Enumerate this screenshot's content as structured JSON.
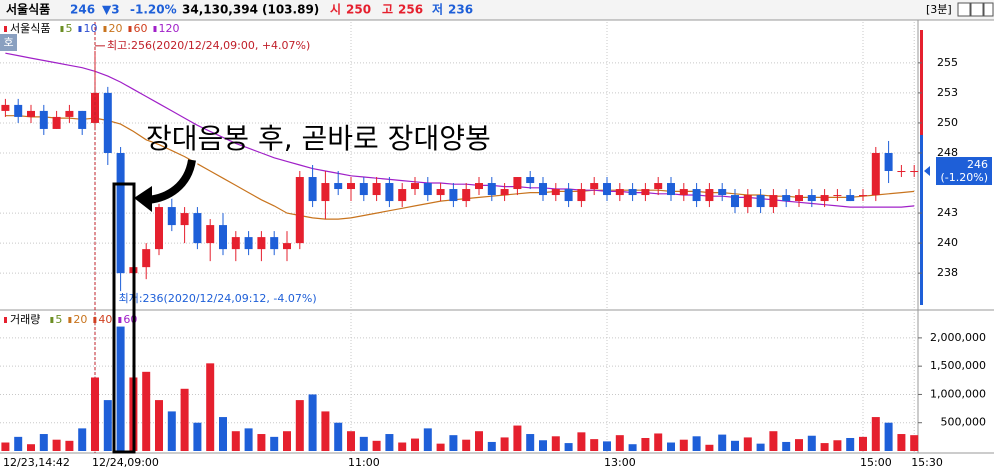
{
  "header": {
    "name": "서울식품",
    "price": "246",
    "change": "▼3",
    "change_pct": "-1.20%",
    "volume": "34,130,394",
    "volume_ratio": "(103.89)",
    "open_label": "시",
    "open": "250",
    "high_label": "고",
    "high": "256",
    "low_label": "저",
    "low": "236",
    "interval": "[3분]"
  },
  "chart_data": [
    {
      "type": "candlestick",
      "title": "서울식품",
      "badge": "호",
      "categories": [
        "12/23,14:42",
        null,
        null,
        null,
        null,
        null,
        null,
        "12/24,09:00",
        null,
        null,
        null,
        null,
        null,
        null,
        null,
        null,
        null,
        null,
        null,
        null,
        null,
        null,
        null,
        null,
        null,
        null,
        null,
        "11:00",
        null,
        null,
        null,
        null,
        null,
        null,
        null,
        null,
        null,
        null,
        null,
        null,
        null,
        null,
        null,
        null,
        null,
        null,
        null,
        "13:00",
        null,
        null,
        null,
        null,
        null,
        null,
        null,
        null,
        null,
        null,
        null,
        null,
        null,
        null,
        null,
        null,
        null,
        null,
        null,
        "15:00",
        null,
        null,
        null,
        "15:30"
      ],
      "open": [
        251,
        251.5,
        250.5,
        251,
        249.5,
        250.5,
        251,
        250,
        252.5,
        247.5,
        237.5,
        238,
        239.5,
        243,
        241.5,
        242.5,
        240,
        241.5,
        239.5,
        240.5,
        239.5,
        240.5,
        239.5,
        240,
        245.5,
        243.5,
        245,
        244.5,
        245,
        244,
        245,
        243.5,
        244.5,
        245,
        244,
        244.5,
        243.5,
        244.5,
        245,
        244,
        244.5,
        245.5,
        245,
        244,
        244.5,
        243.5,
        244.5,
        245,
        244,
        244.5,
        244,
        244.5,
        245,
        244,
        244.5,
        243.5,
        244.5,
        244,
        243,
        244,
        243,
        244,
        243.5,
        244,
        243.5,
        244,
        244,
        244,
        244,
        247.5,
        246,
        246
      ],
      "high": [
        252,
        252,
        251.5,
        251.5,
        251,
        251.5,
        251,
        256,
        253,
        248,
        239,
        240,
        244,
        244.5,
        243,
        243,
        242,
        242.5,
        241,
        241,
        241,
        241,
        241,
        246,
        246.5,
        246,
        246,
        245.5,
        245.5,
        245.5,
        245.5,
        245,
        245.5,
        245.5,
        245,
        245,
        245,
        245.5,
        245.5,
        245,
        245.5,
        246,
        245.5,
        245,
        245,
        245,
        245.5,
        245.5,
        245,
        245,
        245,
        245.5,
        245.5,
        245,
        245,
        245,
        245,
        244.5,
        244.5,
        244.5,
        244.5,
        244.5,
        244.5,
        244.5,
        244.5,
        244.5,
        244.5,
        244.5,
        248,
        248.5,
        246.5,
        246.5
      ],
      "low": [
        250.5,
        250,
        250,
        249,
        249.5,
        250,
        249,
        249.5,
        246.5,
        236,
        236.5,
        237,
        239,
        241,
        240,
        239.5,
        238.5,
        239,
        238.5,
        239,
        238.5,
        239,
        238.5,
        239.5,
        243,
        242,
        244,
        243.5,
        243.5,
        243.5,
        243,
        243,
        244,
        243.5,
        243.5,
        243,
        243,
        244,
        243.5,
        243.5,
        244,
        244.5,
        243.5,
        243.5,
        243,
        243,
        244,
        243.5,
        243.5,
        243.5,
        243.5,
        244,
        243.5,
        243.5,
        243,
        243,
        243.5,
        242.5,
        242.5,
        242.5,
        242.5,
        243,
        243,
        243,
        243,
        243.5,
        243.5,
        243.5,
        243.5,
        245,
        245.5,
        245.5
      ],
      "close": [
        251.5,
        250.5,
        251,
        249.5,
        250.5,
        251,
        249.5,
        252.5,
        247.5,
        237.5,
        238,
        239.5,
        243,
        241.5,
        242.5,
        240,
        241.5,
        239.5,
        240.5,
        239.5,
        240.5,
        239.5,
        240,
        245.5,
        243.5,
        245,
        244.5,
        245,
        244,
        245,
        243.5,
        244.5,
        245,
        244,
        244.5,
        243.5,
        244.5,
        245,
        244,
        244.5,
        245.5,
        245,
        244,
        244.5,
        243.5,
        244.5,
        245,
        244,
        244.5,
        244,
        244.5,
        245,
        244,
        244.5,
        243.5,
        244.5,
        244,
        243,
        244,
        243,
        244,
        243.5,
        244,
        243.5,
        244,
        244,
        243.5,
        244,
        247.5,
        246,
        246,
        246
      ],
      "up_color": "#e5202e",
      "down_color": "#1e5fd8",
      "series": [
        {
          "name": "5",
          "color": "#6b8e23"
        },
        {
          "name": "10",
          "color": "#3050d0"
        },
        {
          "name": "20",
          "color": "#c8741e",
          "values": [
            250.6,
            250.6,
            250.5,
            250.5,
            250.4,
            250.4,
            250.3,
            250.4,
            250.2,
            249.9,
            249.3,
            248.6,
            248.2,
            247.7,
            247.2,
            246.6,
            246,
            245.4,
            244.8,
            244.2,
            243.6,
            243.1,
            242.5,
            242.3,
            242.1,
            242,
            242,
            242.1,
            242.3,
            242.5,
            242.7,
            242.9,
            243.1,
            243.3,
            243.5,
            243.6,
            243.7,
            243.8,
            243.9,
            244,
            244.1,
            244.2,
            244.2,
            244.3,
            244.3,
            244.3,
            244.4,
            244.4,
            244.4,
            244.4,
            244.4,
            244.4,
            244.3,
            244.3,
            244.3,
            244.2,
            244.2,
            244.1,
            244,
            244,
            243.9,
            243.9,
            243.8,
            243.8,
            243.8,
            243.8,
            243.8,
            243.9,
            244,
            244.1,
            244.2,
            244.3
          ]
        },
        {
          "name": "60",
          "color": "#d04020"
        },
        {
          "name": "120",
          "color": "#a020c8",
          "values": [
            255.8,
            255.6,
            255.4,
            255.2,
            255,
            254.8,
            254.6,
            254.3,
            253.9,
            253.4,
            252.8,
            252.2,
            251.6,
            251,
            250.4,
            249.8,
            249.3,
            248.8,
            248.3,
            247.9,
            247.5,
            247.1,
            246.8,
            246.5,
            246.2,
            246,
            245.8,
            245.6,
            245.5,
            245.4,
            245.3,
            245.2,
            245.1,
            245,
            245,
            244.9,
            244.9,
            244.8,
            244.8,
            244.7,
            244.7,
            244.6,
            244.6,
            244.5,
            244.5,
            244.4,
            244.4,
            244.3,
            244.3,
            244.2,
            244.2,
            244.1,
            244.1,
            244,
            244,
            243.9,
            243.9,
            243.8,
            243.8,
            243.7,
            243.6,
            243.5,
            243.4,
            243.3,
            243.2,
            243.1,
            243,
            243,
            243,
            243,
            243,
            243.1
          ]
        }
      ],
      "ylim": [
        234.6,
        258.4
      ],
      "yticks": [
        255,
        {
          "value": 252.5,
          "label": "253"
        },
        250,
        {
          "value": 247.5,
          "label": "248"
        },
        {
          "value": 242.5,
          "label": "243"
        },
        240,
        {
          "value": 237.5,
          "label": "238"
        }
      ],
      "grid": true,
      "current": 246,
      "current_change": "(-1.20%)",
      "high_note": "최고:256(2020/12/24,09:00, +4.07%)",
      "low_note": "최저:236(2020/12/24,09:12, -4.07%)",
      "annotation": "장대음봉 후, 곧바로 장대양봉"
    },
    {
      "type": "bar",
      "title": "거래량",
      "values": [
        150000,
        250000,
        120000,
        300000,
        200000,
        180000,
        400000,
        1300000,
        900000,
        2200000,
        1300000,
        1400000,
        900000,
        700000,
        1100000,
        500000,
        1550000,
        600000,
        350000,
        400000,
        300000,
        250000,
        350000,
        900000,
        1000000,
        700000,
        500000,
        350000,
        250000,
        180000,
        300000,
        150000,
        220000,
        400000,
        130000,
        280000,
        200000,
        350000,
        160000,
        240000,
        450000,
        300000,
        190000,
        260000,
        140000,
        330000,
        210000,
        170000,
        280000,
        120000,
        230000,
        310000,
        150000,
        200000,
        260000,
        110000,
        290000,
        180000,
        240000,
        130000,
        350000,
        160000,
        210000,
        270000,
        140000,
        190000,
        230000,
        250000,
        600000,
        500000,
        300000,
        280000
      ],
      "series": [
        {
          "name": "5",
          "color": "#6b8e23"
        },
        {
          "name": "20",
          "color": "#c8741e"
        },
        {
          "name": "40",
          "color": "#d04020"
        },
        {
          "name": "60",
          "color": "#a020c8"
        }
      ],
      "ylim": [
        0,
        2440000
      ],
      "yticks": [
        {
          "value": 500000,
          "label": "500,000"
        },
        {
          "value": 1000000,
          "label": "1,000,000"
        },
        {
          "value": 1500000,
          "label": "1,500,000"
        },
        {
          "value": 2000000,
          "label": "2,000,000"
        }
      ],
      "grid": true
    }
  ]
}
